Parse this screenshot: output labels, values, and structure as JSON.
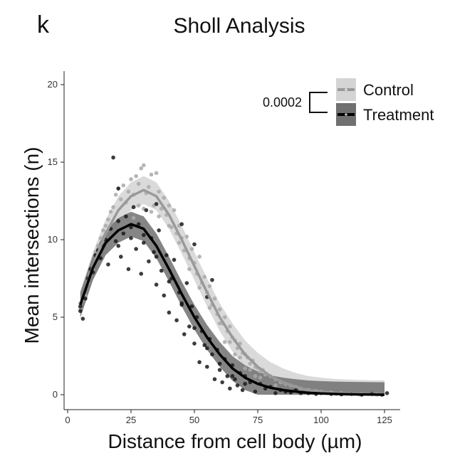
{
  "panel_letter": "k",
  "chart_data": {
    "type": "scatter",
    "title": "Sholl Analysis",
    "xlabel": "Distance from cell body (µm)",
    "ylabel": "Mean intersections (n)",
    "xlim": [
      0,
      130
    ],
    "ylim": [
      0,
      20
    ],
    "x_ticks": [
      0,
      25,
      50,
      75,
      100,
      125
    ],
    "y_ticks": [
      0,
      5,
      10,
      15,
      20
    ],
    "grid": false,
    "legend_position": "top-right",
    "p_value": "0.0002",
    "series": [
      {
        "name": "Control",
        "color": "#a9a9a9",
        "ribbon_color": "#d4d4d4",
        "mean_curve": [
          [
            5,
            5.8
          ],
          [
            10,
            8.3
          ],
          [
            15,
            10.4
          ],
          [
            20,
            11.9
          ],
          [
            25,
            12.8
          ],
          [
            30,
            13.2
          ],
          [
            35,
            12.8
          ],
          [
            40,
            11.6
          ],
          [
            45,
            10.0
          ],
          [
            50,
            8.3
          ],
          [
            55,
            6.6
          ],
          [
            60,
            5.0
          ],
          [
            65,
            3.7
          ],
          [
            70,
            2.6
          ],
          [
            75,
            1.8
          ],
          [
            80,
            1.2
          ],
          [
            85,
            0.8
          ],
          [
            90,
            0.5
          ],
          [
            95,
            0.3
          ],
          [
            100,
            0.2
          ],
          [
            105,
            0.12
          ],
          [
            110,
            0.08
          ],
          [
            115,
            0.05
          ],
          [
            120,
            0.03
          ],
          [
            125,
            0.02
          ]
        ],
        "ribbon_halfwidth": 0.9,
        "points": [
          [
            5,
            5.9
          ],
          [
            5,
            5.6
          ],
          [
            6,
            6.1
          ],
          [
            7,
            6.4
          ],
          [
            8,
            7.2
          ],
          [
            9,
            7.8
          ],
          [
            10,
            8.0
          ],
          [
            11,
            9.2
          ],
          [
            12,
            9.6
          ],
          [
            13,
            10.1
          ],
          [
            14,
            10.6
          ],
          [
            15,
            10.9
          ],
          [
            16,
            11.3
          ],
          [
            17,
            11.8
          ],
          [
            18,
            12.1
          ],
          [
            19,
            12.9
          ],
          [
            20,
            13.3
          ],
          [
            21,
            12.6
          ],
          [
            22,
            13.5
          ],
          [
            23,
            12.4
          ],
          [
            24,
            13.1
          ],
          [
            25,
            13.9
          ],
          [
            26,
            12.9
          ],
          [
            27,
            14.1
          ],
          [
            28,
            13.6
          ],
          [
            29,
            14.6
          ],
          [
            30,
            14.8
          ],
          [
            31,
            13.0
          ],
          [
            32,
            13.4
          ],
          [
            33,
            14.2
          ],
          [
            34,
            12.2
          ],
          [
            35,
            14.3
          ],
          [
            36,
            13.1
          ],
          [
            37,
            12.0
          ],
          [
            38,
            12.7
          ],
          [
            39,
            11.6
          ],
          [
            40,
            12.2
          ],
          [
            41,
            10.8
          ],
          [
            42,
            11.9
          ],
          [
            43,
            10.4
          ],
          [
            44,
            10.9
          ],
          [
            45,
            10.1
          ],
          [
            46,
            9.3
          ],
          [
            47,
            10.2
          ],
          [
            48,
            8.8
          ],
          [
            49,
            9.4
          ],
          [
            50,
            8.5
          ],
          [
            51,
            7.8
          ],
          [
            52,
            8.9
          ],
          [
            53,
            7.2
          ],
          [
            54,
            7.6
          ],
          [
            55,
            6.6
          ],
          [
            56,
            7.0
          ],
          [
            57,
            5.8
          ],
          [
            58,
            6.2
          ],
          [
            59,
            5.2
          ],
          [
            60,
            5.5
          ],
          [
            61,
            4.6
          ],
          [
            62,
            5.0
          ],
          [
            63,
            4.1
          ],
          [
            64,
            4.4
          ],
          [
            65,
            3.7
          ],
          [
            66,
            3.5
          ],
          [
            67,
            3.0
          ],
          [
            68,
            3.3
          ],
          [
            69,
            2.7
          ],
          [
            70,
            2.6
          ],
          [
            71,
            2.4
          ],
          [
            72,
            2.0
          ],
          [
            73,
            2.2
          ],
          [
            74,
            1.8
          ],
          [
            75,
            1.7
          ],
          [
            76,
            1.5
          ],
          [
            77,
            1.6
          ],
          [
            78,
            1.3
          ],
          [
            80,
            1.2
          ],
          [
            82,
            1.0
          ],
          [
            84,
            0.8
          ],
          [
            86,
            0.7
          ],
          [
            88,
            0.6
          ],
          [
            90,
            0.5
          ],
          [
            92,
            0.4
          ],
          [
            95,
            0.3
          ],
          [
            98,
            0.25
          ],
          [
            100,
            0.2
          ],
          [
            104,
            0.15
          ],
          [
            108,
            0.1
          ],
          [
            112,
            0.08
          ],
          [
            116,
            0.05
          ],
          [
            120,
            0.04
          ],
          [
            124,
            0.03
          ],
          [
            26,
            11.4
          ],
          [
            28,
            12.2
          ],
          [
            30,
            12.0
          ],
          [
            33,
            11.8
          ],
          [
            36,
            11.5
          ],
          [
            40,
            10.9
          ],
          [
            44,
            9.8
          ],
          [
            48,
            8.1
          ],
          [
            52,
            6.9
          ],
          [
            56,
            5.6
          ],
          [
            60,
            4.6
          ],
          [
            64,
            3.4
          ],
          [
            68,
            2.4
          ],
          [
            72,
            1.6
          ],
          [
            76,
            1.1
          ],
          [
            62,
            3.4
          ],
          [
            66,
            2.6
          ],
          [
            70,
            1.7
          ],
          [
            74,
            1.2
          ],
          [
            82,
            0.6
          ],
          [
            90,
            0.2
          ],
          [
            98,
            0.1
          ],
          [
            106,
            0.05
          ],
          [
            115,
            0.02
          ],
          [
            122,
            0.01
          ]
        ]
      },
      {
        "name": "Treatment",
        "color": "#1a1a1a",
        "ribbon_color": "#707070",
        "mean_curve": [
          [
            5,
            5.8
          ],
          [
            10,
            8.2
          ],
          [
            15,
            9.8
          ],
          [
            20,
            10.6
          ],
          [
            25,
            11.0
          ],
          [
            30,
            10.7
          ],
          [
            35,
            9.6
          ],
          [
            40,
            8.1
          ],
          [
            45,
            6.5
          ],
          [
            50,
            5.0
          ],
          [
            55,
            3.7
          ],
          [
            60,
            2.6
          ],
          [
            65,
            1.7
          ],
          [
            70,
            1.1
          ],
          [
            75,
            0.7
          ],
          [
            80,
            0.45
          ],
          [
            85,
            0.3
          ],
          [
            90,
            0.2
          ],
          [
            95,
            0.12
          ],
          [
            100,
            0.08
          ],
          [
            105,
            0.05
          ],
          [
            110,
            0.03
          ],
          [
            115,
            0.02
          ],
          [
            120,
            0.01
          ],
          [
            125,
            0.0
          ]
        ],
        "ribbon_halfwidth": 0.8,
        "points": [
          [
            5,
            5.7
          ],
          [
            5,
            5.4
          ],
          [
            6,
            4.9
          ],
          [
            7,
            6.2
          ],
          [
            8,
            7.5
          ],
          [
            9,
            8.1
          ],
          [
            10,
            7.9
          ],
          [
            11,
            9.0
          ],
          [
            12,
            9.3
          ],
          [
            13,
            8.8
          ],
          [
            14,
            9.6
          ],
          [
            15,
            10.0
          ],
          [
            16,
            8.4
          ],
          [
            17,
            10.7
          ],
          [
            18,
            15.3
          ],
          [
            19,
            9.9
          ],
          [
            20,
            11.2
          ],
          [
            21,
            8.9
          ],
          [
            22,
            10.4
          ],
          [
            23,
            11.5
          ],
          [
            24,
            8.1
          ],
          [
            25,
            10.8
          ],
          [
            26,
            12.1
          ],
          [
            27,
            9.4
          ],
          [
            28,
            11.0
          ],
          [
            29,
            7.8
          ],
          [
            30,
            10.3
          ],
          [
            31,
            11.9
          ],
          [
            32,
            8.6
          ],
          [
            33,
            10.1
          ],
          [
            34,
            9.2
          ],
          [
            35,
            7.1
          ],
          [
            36,
            10.6
          ],
          [
            37,
            8.0
          ],
          [
            38,
            6.4
          ],
          [
            39,
            9.0
          ],
          [
            40,
            5.3
          ],
          [
            41,
            7.5
          ],
          [
            42,
            8.7
          ],
          [
            43,
            4.8
          ],
          [
            44,
            6.6
          ],
          [
            45,
            5.9
          ],
          [
            46,
            3.9
          ],
          [
            47,
            7.2
          ],
          [
            48,
            4.4
          ],
          [
            49,
            5.7
          ],
          [
            50,
            3.3
          ],
          [
            51,
            5.0
          ],
          [
            52,
            2.1
          ],
          [
            53,
            4.1
          ],
          [
            54,
            3.2
          ],
          [
            55,
            1.8
          ],
          [
            56,
            3.6
          ],
          [
            57,
            2.6
          ],
          [
            58,
            1.0
          ],
          [
            59,
            2.9
          ],
          [
            60,
            1.6
          ],
          [
            61,
            0.8
          ],
          [
            62,
            2.3
          ],
          [
            63,
            1.2
          ],
          [
            64,
            0.4
          ],
          [
            65,
            1.9
          ],
          [
            66,
            1.0
          ],
          [
            67,
            0.6
          ],
          [
            68,
            1.4
          ],
          [
            69,
            0.3
          ],
          [
            70,
            1.2
          ],
          [
            72,
            0.8
          ],
          [
            74,
            0.2
          ],
          [
            76,
            0.7
          ],
          [
            78,
            0.4
          ],
          [
            80,
            0.5
          ],
          [
            82,
            0.1
          ],
          [
            84,
            0.3
          ],
          [
            86,
            0.2
          ],
          [
            88,
            0.15
          ],
          [
            90,
            0.3
          ],
          [
            92,
            0.1
          ],
          [
            95,
            0.1
          ],
          [
            98,
            0.05
          ],
          [
            100,
            0.1
          ],
          [
            104,
            0.05
          ],
          [
            108,
            0.02
          ],
          [
            112,
            0.05
          ],
          [
            116,
            0.0
          ],
          [
            120,
            0.05
          ],
          [
            124,
            0.0
          ],
          [
            126,
            0.1
          ],
          [
            20,
            9.6
          ],
          [
            25,
            10.1
          ],
          [
            30,
            9.8
          ],
          [
            35,
            8.9
          ],
          [
            40,
            7.3
          ],
          [
            45,
            5.8
          ],
          [
            50,
            4.3
          ],
          [
            55,
            3.0
          ],
          [
            60,
            2.0
          ],
          [
            65,
            1.2
          ],
          [
            70,
            0.7
          ],
          [
            20,
            13.3
          ],
          [
            35,
            12.3
          ],
          [
            45,
            11.0
          ],
          [
            50,
            9.7
          ],
          [
            55,
            6.3
          ],
          [
            57,
            7.4
          ]
        ]
      }
    ]
  }
}
